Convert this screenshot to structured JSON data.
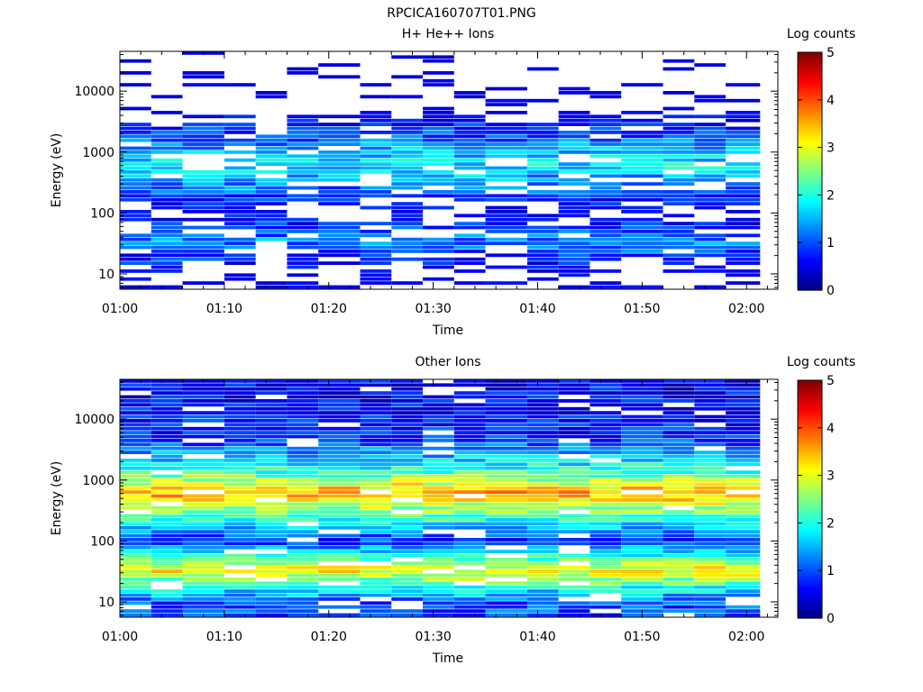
{
  "figure_title": "RPCICA160707T01.PNG",
  "chart_data": [
    {
      "type": "heatmap",
      "title": "H+ He++ Ions",
      "xlabel": "Time",
      "ylabel": "Energy (eV)",
      "xlim": [
        "01:00",
        "02:03"
      ],
      "ylim": [
        5.6,
        45000
      ],
      "yscale": "log",
      "x_ticks": [
        "01:00",
        "01:10",
        "01:20",
        "01:30",
        "01:40",
        "01:50",
        "02:00"
      ],
      "y_ticks": [
        "10",
        "100",
        "1000",
        "10000"
      ],
      "colorbar": {
        "label": "Log counts",
        "min": 0,
        "max": 5,
        "ticks": [
          "0",
          "1",
          "2",
          "3",
          "4",
          "5"
        ]
      },
      "time_bins": [
        "01:00",
        "01:03",
        "01:06",
        "01:10",
        "01:13",
        "01:16",
        "01:19",
        "01:23",
        "01:26",
        "01:29",
        "01:32",
        "01:35",
        "01:39",
        "01:42",
        "01:45",
        "01:48",
        "01:52",
        "01:55",
        "01:58"
      ],
      "energy_profile": {
        "description_values": [
          {
            "energy_eV": 10,
            "log_counts": 0.3
          },
          {
            "energy_eV": 35,
            "log_counts": 1.3
          },
          {
            "energy_eV": 100,
            "log_counts": 0.4
          },
          {
            "energy_eV": 600,
            "log_counts": 1.8
          },
          {
            "energy_eV": 1400,
            "log_counts": 1.3
          },
          {
            "energy_eV": 5000,
            "log_counts": 0.2
          },
          {
            "energy_eV": 20000,
            "log_counts": 0.1
          }
        ]
      },
      "grid": false,
      "legend": "colorbar-right"
    },
    {
      "type": "heatmap",
      "title": "Other Ions",
      "xlabel": "Time",
      "ylabel": "Energy (eV)",
      "xlim": [
        "01:00",
        "02:03"
      ],
      "ylim": [
        5.6,
        45000
      ],
      "yscale": "log",
      "x_ticks": [
        "01:00",
        "01:10",
        "01:20",
        "01:30",
        "01:40",
        "01:50",
        "02:00"
      ],
      "y_ticks": [
        "10",
        "100",
        "1000",
        "10000"
      ],
      "colorbar": {
        "label": "Log counts",
        "min": 0,
        "max": 5,
        "ticks": [
          "0",
          "1",
          "2",
          "3",
          "4",
          "5"
        ]
      },
      "time_bins": [
        "01:00",
        "01:03",
        "01:06",
        "01:10",
        "01:13",
        "01:16",
        "01:19",
        "01:23",
        "01:26",
        "01:29",
        "01:32",
        "01:35",
        "01:39",
        "01:42",
        "01:45",
        "01:48",
        "01:52",
        "01:55",
        "01:58"
      ],
      "energy_profile": {
        "description_values": [
          {
            "energy_eV": 10,
            "log_counts": 1.0
          },
          {
            "energy_eV": 33,
            "log_counts": 3.2
          },
          {
            "energy_eV": 100,
            "log_counts": 0.8
          },
          {
            "energy_eV": 600,
            "log_counts": 3.6
          },
          {
            "energy_eV": 1400,
            "log_counts": 2.1
          },
          {
            "energy_eV": 5000,
            "log_counts": 0.8
          },
          {
            "energy_eV": 20000,
            "log_counts": 0.6
          }
        ]
      },
      "grid": false,
      "legend": "colorbar-right"
    }
  ]
}
